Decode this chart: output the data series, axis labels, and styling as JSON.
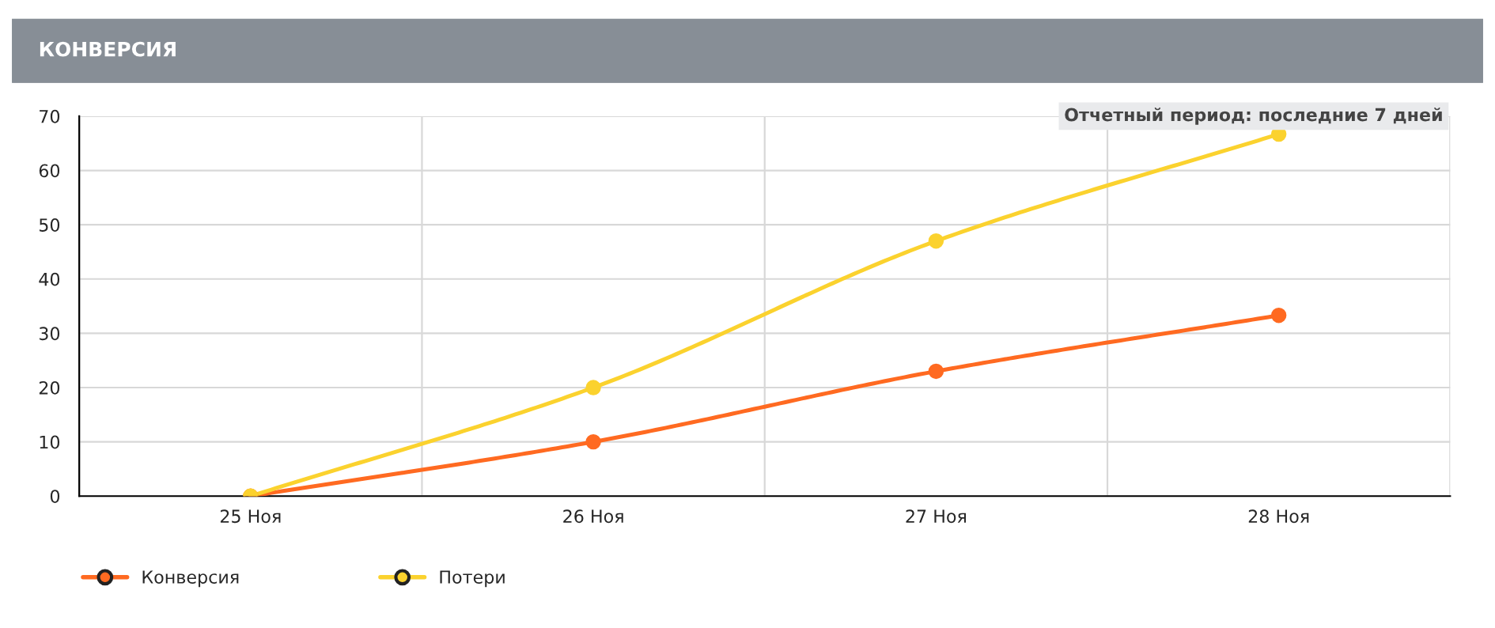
{
  "chart_data": {
    "type": "line",
    "title": "КОНВЕРСИЯ",
    "categories": [
      "25 Ноя",
      "26 Ноя",
      "27 Ноя",
      "28 Ноя"
    ],
    "series": [
      {
        "name": "Конверсия",
        "color": "#ff6a21",
        "values": [
          0,
          10,
          23,
          33.3
        ]
      },
      {
        "name": "Потери",
        "color": "#fbd22e",
        "values": [
          0,
          20,
          47,
          66.7
        ]
      }
    ],
    "ylim": [
      0,
      70
    ],
    "yticks": [
      0,
      10,
      20,
      30,
      40,
      50,
      60,
      70
    ],
    "annotations": [
      "Отчетный период: последние 7 дней"
    ],
    "grid": true,
    "legend": "bottom left",
    "marker": "circle",
    "line_style": "solid"
  }
}
